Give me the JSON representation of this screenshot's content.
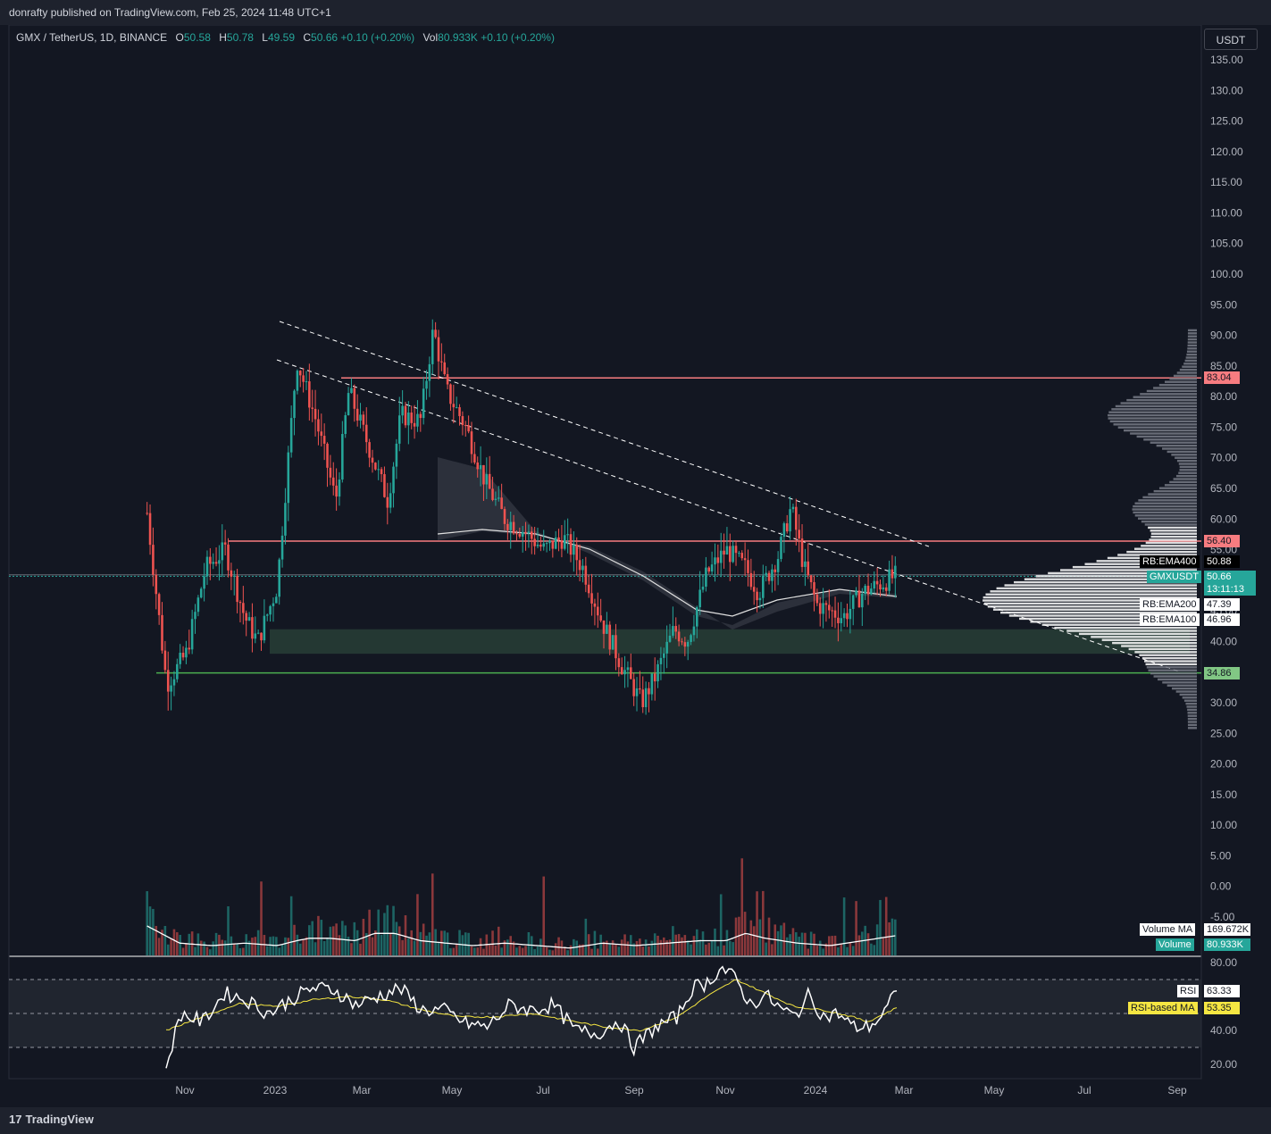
{
  "header": {
    "published_by": "donrafty published on TradingView.com, Feb 25, 2024 11:48 UTC+1"
  },
  "legend": {
    "symbol": "GMX / TetherUS, 1D, BINANCE",
    "open_label": "O",
    "open": "50.58",
    "high_label": "H",
    "high": "50.78",
    "low_label": "L",
    "low": "49.59",
    "close_label": "C",
    "close": "50.66",
    "change": "+0.10 (+0.20%)",
    "vol_label": "Vol",
    "vol": "80.933K",
    "vol_change": "+0.10 (+0.20%)"
  },
  "currency_button": "USDT",
  "footer": {
    "brand": "TradingView"
  },
  "colors": {
    "background": "#131722",
    "up": "#26a69a",
    "down": "#ef5350",
    "resistance": "#f77c80",
    "support": "#4caf50",
    "rsi": "#ffffff",
    "rsi_ma": "#f5e642"
  },
  "chart_data": {
    "type": "candlestick",
    "symbol": "GMXUSDT",
    "interval": "1D",
    "price_axis": {
      "ticks": [
        "135.00",
        "130.00",
        "125.00",
        "120.00",
        "115.00",
        "110.00",
        "105.00",
        "100.00",
        "95.00",
        "90.00",
        "85.00",
        "80.00",
        "75.00",
        "70.00",
        "65.00",
        "60.00",
        "55.00",
        "50.00",
        "45.00",
        "40.00",
        "35.00",
        "30.00",
        "25.00",
        "20.00",
        "15.00",
        "10.00",
        "5.00",
        "0.00",
        "-5.00"
      ],
      "range": [
        -5,
        135
      ]
    },
    "time_axis": {
      "ticks": [
        "Nov",
        "2023",
        "Mar",
        "May",
        "Jul",
        "Sep",
        "Nov",
        "2024",
        "Mar",
        "May",
        "Jul",
        "Sep"
      ]
    },
    "ohlc_path": [
      [
        0,
        61
      ],
      [
        3,
        33
      ],
      [
        6,
        38
      ],
      [
        9,
        52
      ],
      [
        12,
        55
      ],
      [
        15,
        44
      ],
      [
        17,
        40
      ],
      [
        20,
        49
      ],
      [
        23,
        86
      ],
      [
        26,
        76
      ],
      [
        29,
        63
      ],
      [
        31,
        81
      ],
      [
        34,
        72
      ],
      [
        37,
        63
      ],
      [
        39,
        77
      ],
      [
        42,
        76
      ],
      [
        44,
        91
      ],
      [
        46,
        81
      ],
      [
        49,
        75
      ],
      [
        52,
        66
      ],
      [
        55,
        60
      ],
      [
        58,
        58
      ],
      [
        61,
        55
      ],
      [
        64,
        57
      ],
      [
        67,
        52
      ],
      [
        70,
        43
      ],
      [
        73,
        36
      ],
      [
        76,
        30
      ],
      [
        78,
        34
      ],
      [
        81,
        42
      ],
      [
        83,
        40
      ],
      [
        86,
        51
      ],
      [
        89,
        55
      ],
      [
        92,
        52
      ],
      [
        94,
        48
      ],
      [
        97,
        54
      ],
      [
        99,
        62
      ],
      [
        101,
        52
      ],
      [
        103,
        46
      ],
      [
        105,
        45
      ],
      [
        107,
        44
      ],
      [
        110,
        48
      ],
      [
        115,
        50.66
      ]
    ],
    "volume_path": [
      [
        0,
        1.2
      ],
      [
        5,
        0.5
      ],
      [
        10,
        0.4
      ],
      [
        15,
        0.5
      ],
      [
        20,
        0.4
      ],
      [
        23,
        0.6
      ],
      [
        25,
        0.7
      ],
      [
        28,
        0.7
      ],
      [
        32,
        0.6
      ],
      [
        35,
        0.9
      ],
      [
        38,
        0.9
      ],
      [
        42,
        0.6
      ],
      [
        46,
        0.5
      ],
      [
        50,
        0.4
      ],
      [
        55,
        0.5
      ],
      [
        60,
        0.4
      ],
      [
        65,
        0.3
      ],
      [
        70,
        0.5
      ],
      [
        75,
        0.4
      ],
      [
        80,
        0.5
      ],
      [
        85,
        0.6
      ],
      [
        89,
        0.6
      ],
      [
        92,
        0.9
      ],
      [
        95,
        0.7
      ],
      [
        100,
        0.5
      ],
      [
        105,
        0.4
      ],
      [
        110,
        0.6
      ],
      [
        115,
        0.8
      ]
    ],
    "rsi_path": [
      [
        0,
        19
      ],
      [
        2,
        50
      ],
      [
        5,
        45
      ],
      [
        8,
        62
      ],
      [
        11,
        58
      ],
      [
        14,
        50
      ],
      [
        17,
        58
      ],
      [
        20,
        65
      ],
      [
        23,
        64
      ],
      [
        26,
        55
      ],
      [
        29,
        60
      ],
      [
        32,
        65
      ],
      [
        35,
        52
      ],
      [
        38,
        52
      ],
      [
        41,
        44
      ],
      [
        44,
        42
      ],
      [
        47,
        55
      ],
      [
        50,
        52
      ],
      [
        53,
        55
      ],
      [
        56,
        40
      ],
      [
        59,
        38
      ],
      [
        62,
        46
      ],
      [
        64,
        30
      ],
      [
        67,
        42
      ],
      [
        70,
        48
      ],
      [
        72,
        65
      ],
      [
        74,
        68
      ],
      [
        76,
        77
      ],
      [
        78,
        70
      ],
      [
        80,
        55
      ],
      [
        82,
        61
      ],
      [
        84,
        53
      ],
      [
        86,
        48
      ],
      [
        88,
        61
      ],
      [
        90,
        48
      ],
      [
        92,
        50
      ],
      [
        94,
        42
      ],
      [
        96,
        42
      ],
      [
        98,
        48
      ],
      [
        100,
        63.33
      ]
    ],
    "rsi_ma_path": [
      [
        0,
        40
      ],
      [
        5,
        48
      ],
      [
        10,
        56
      ],
      [
        15,
        54
      ],
      [
        20,
        58
      ],
      [
        25,
        60
      ],
      [
        30,
        58
      ],
      [
        35,
        52
      ],
      [
        40,
        48
      ],
      [
        45,
        48
      ],
      [
        50,
        50
      ],
      [
        55,
        46
      ],
      [
        60,
        42
      ],
      [
        65,
        40
      ],
      [
        70,
        48
      ],
      [
        74,
        60
      ],
      [
        78,
        70
      ],
      [
        82,
        62
      ],
      [
        86,
        54
      ],
      [
        90,
        52
      ],
      [
        94,
        48
      ],
      [
        96,
        45
      ],
      [
        100,
        53.35
      ]
    ],
    "rsi_axis": {
      "ticks": [
        "80.00",
        "40.00",
        "20.00"
      ]
    },
    "price_labels": [
      {
        "label": "",
        "value": "83.04",
        "kind": "resistance"
      },
      {
        "label": "",
        "value": "56.40",
        "kind": "resistance"
      },
      {
        "label": "RB:EMA400",
        "value": "50.88",
        "kind": "ema"
      },
      {
        "label": "GMXUSDT",
        "value": "50.66",
        "extra": "13:11:13",
        "kind": "current"
      },
      {
        "label": "RB:EMA200",
        "value": "47.39",
        "kind": "ema"
      },
      {
        "label": "RB:EMA100",
        "value": "46.96",
        "kind": "ema"
      },
      {
        "label": "",
        "value": "34.86",
        "kind": "support"
      }
    ],
    "volume_labels": [
      {
        "label": "Volume MA",
        "value": "169.672K"
      },
      {
        "label": "Volume",
        "value": "80.933K"
      }
    ],
    "rsi_labels": [
      {
        "label": "RSI",
        "value": "63.33"
      },
      {
        "label": "RSI-based MA",
        "value": "53.35"
      }
    ]
  }
}
